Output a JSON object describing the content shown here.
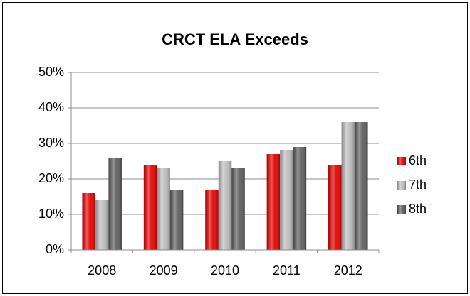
{
  "chart_data": {
    "type": "bar",
    "title": "CRCT ELA Exceeds",
    "categories": [
      "2008",
      "2009",
      "2010",
      "2011",
      "2012"
    ],
    "series": [
      {
        "name": "6th",
        "color": "#e60000",
        "values": [
          16,
          24,
          17,
          27,
          24
        ]
      },
      {
        "name": "7th",
        "color": "#bdbdbd",
        "values": [
          14,
          23,
          25,
          28,
          36
        ]
      },
      {
        "name": "8th",
        "color": "#5f5f5f",
        "values": [
          26,
          17,
          23,
          29,
          36
        ]
      }
    ],
    "ylim": [
      0,
      50
    ],
    "yticks": [
      {
        "value": 0,
        "label": "0%"
      },
      {
        "value": 10,
        "label": "10%"
      },
      {
        "value": 20,
        "label": "20%"
      },
      {
        "value": 30,
        "label": "30%"
      },
      {
        "value": 40,
        "label": "40%"
      },
      {
        "value": 50,
        "label": "50%"
      }
    ],
    "grid": true,
    "legend": "right"
  }
}
